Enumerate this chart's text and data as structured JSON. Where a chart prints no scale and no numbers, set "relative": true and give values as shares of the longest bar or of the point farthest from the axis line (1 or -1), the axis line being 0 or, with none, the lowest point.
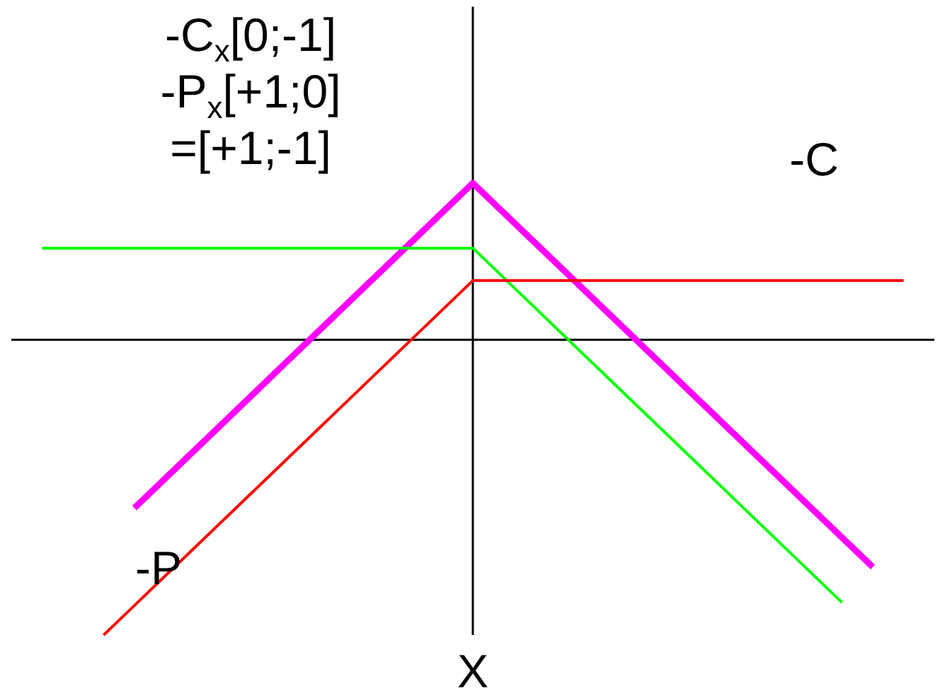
{
  "chart_data": {
    "type": "line",
    "relative": true,
    "xlabel": "X",
    "categories": [
      null,
      null,
      null,
      null,
      null,
      null,
      null,
      null,
      null,
      null,
      null,
      null,
      null,
      null,
      null,
      null,
      null,
      null,
      null,
      null,
      null,
      null,
      null,
      null,
      null,
      null,
      null,
      null,
      null
    ],
    "series": [
      {
        "color": "#ff00ff",
        "values": [
          null,
          null,
          null,
          -0.57,
          -0.47,
          -0.37,
          -0.27,
          -0.17,
          -0.07,
          0.03,
          0.13,
          0.23,
          0.33,
          0.43,
          0.53,
          0.43,
          0.33,
          0.23,
          0.13,
          0.03,
          -0.07,
          -0.17,
          -0.27,
          -0.37,
          -0.47,
          -0.57,
          -0.67,
          -0.77,
          null
        ]
      },
      {
        "color": "#00ff00",
        "values": [
          0.31,
          0.31,
          0.31,
          0.31,
          0.31,
          0.31,
          0.31,
          0.31,
          0.31,
          0.31,
          0.31,
          0.31,
          0.31,
          0.31,
          0.31,
          0.21,
          0.11,
          0.01,
          -0.09,
          -0.19,
          -0.29,
          -0.39,
          -0.49,
          -0.59,
          -0.69,
          -0.79,
          -0.89,
          null,
          null
        ]
      },
      {
        "color": "#ff0000",
        "values": [
          null,
          null,
          -1,
          -0.9,
          -0.8,
          -0.7,
          -0.6,
          -0.5,
          -0.4,
          -0.3,
          -0.2,
          -0.1,
          0,
          0.1,
          0.2,
          0.2,
          0.2,
          0.2,
          0.2,
          0.2,
          0.2,
          0.2,
          0.2,
          0.2,
          0.2,
          0.2,
          0.2,
          0.2,
          0.2
        ]
      }
    ],
    "annotations": [
      "-C$_{x}$[0;-1]",
      "-P$_{x}$[+1;0]",
      "=[+1;-1]",
      "-C",
      "-P"
    ]
  }
}
